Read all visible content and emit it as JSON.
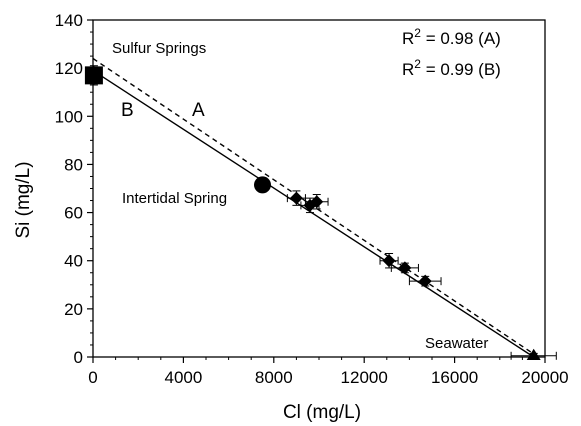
{
  "chart_data": {
    "type": "scatter",
    "xlabel": "Cl (mg/L)",
    "ylabel": "Si (mg/L)",
    "xlim": [
      0,
      20000
    ],
    "ylim": [
      0,
      140
    ],
    "xticks": [
      "0",
      "4000",
      "8000",
      "12000",
      "16000",
      "20000"
    ],
    "yticks": [
      "0",
      "20",
      "40",
      "60",
      "80",
      "100",
      "120",
      "140"
    ],
    "grid": false,
    "points": [
      {
        "x": 40,
        "y": 117,
        "marker": "square",
        "xerr": 0,
        "yerr": 4
      },
      {
        "x": 7500,
        "y": 71.5,
        "marker": "circle",
        "xerr": 200,
        "yerr": 3
      },
      {
        "x": 9000,
        "y": 66,
        "marker": "diamond",
        "xerr": 400,
        "yerr": 3
      },
      {
        "x": 9600,
        "y": 63,
        "marker": "diamond",
        "xerr": 400,
        "yerr": 3
      },
      {
        "x": 9900,
        "y": 64.5,
        "marker": "diamond",
        "xerr": 500,
        "yerr": 3
      },
      {
        "x": 13100,
        "y": 40,
        "marker": "diamond",
        "xerr": 400,
        "yerr": 3
      },
      {
        "x": 13800,
        "y": 37,
        "marker": "diamond",
        "xerr": 600,
        "yerr": 2
      },
      {
        "x": 14700,
        "y": 31.5,
        "marker": "diamond",
        "xerr": 700,
        "yerr": 2
      },
      {
        "x": 19500,
        "y": 0.5,
        "marker": "triangle",
        "xerr": 1000,
        "yerr": 1
      }
    ],
    "lines": [
      {
        "name": "A",
        "style": "dashed",
        "x": [
          0,
          19700
        ],
        "y": [
          124,
          0
        ]
      },
      {
        "name": "B",
        "style": "solid",
        "x": [
          0,
          19500
        ],
        "y": [
          119,
          0
        ]
      }
    ],
    "annotations": {
      "sulfur": "Sulfur Springs",
      "intertidal": "Intertidal Spring",
      "seawater": "Seawater",
      "label_a": "A",
      "label_b": "B"
    },
    "stats": {
      "a": {
        "prefix": "R",
        "sup": "2",
        "value": " = 0.98 (A)"
      },
      "b": {
        "prefix": "R",
        "sup": "2",
        "value": " = 0.99 (B)"
      }
    }
  }
}
